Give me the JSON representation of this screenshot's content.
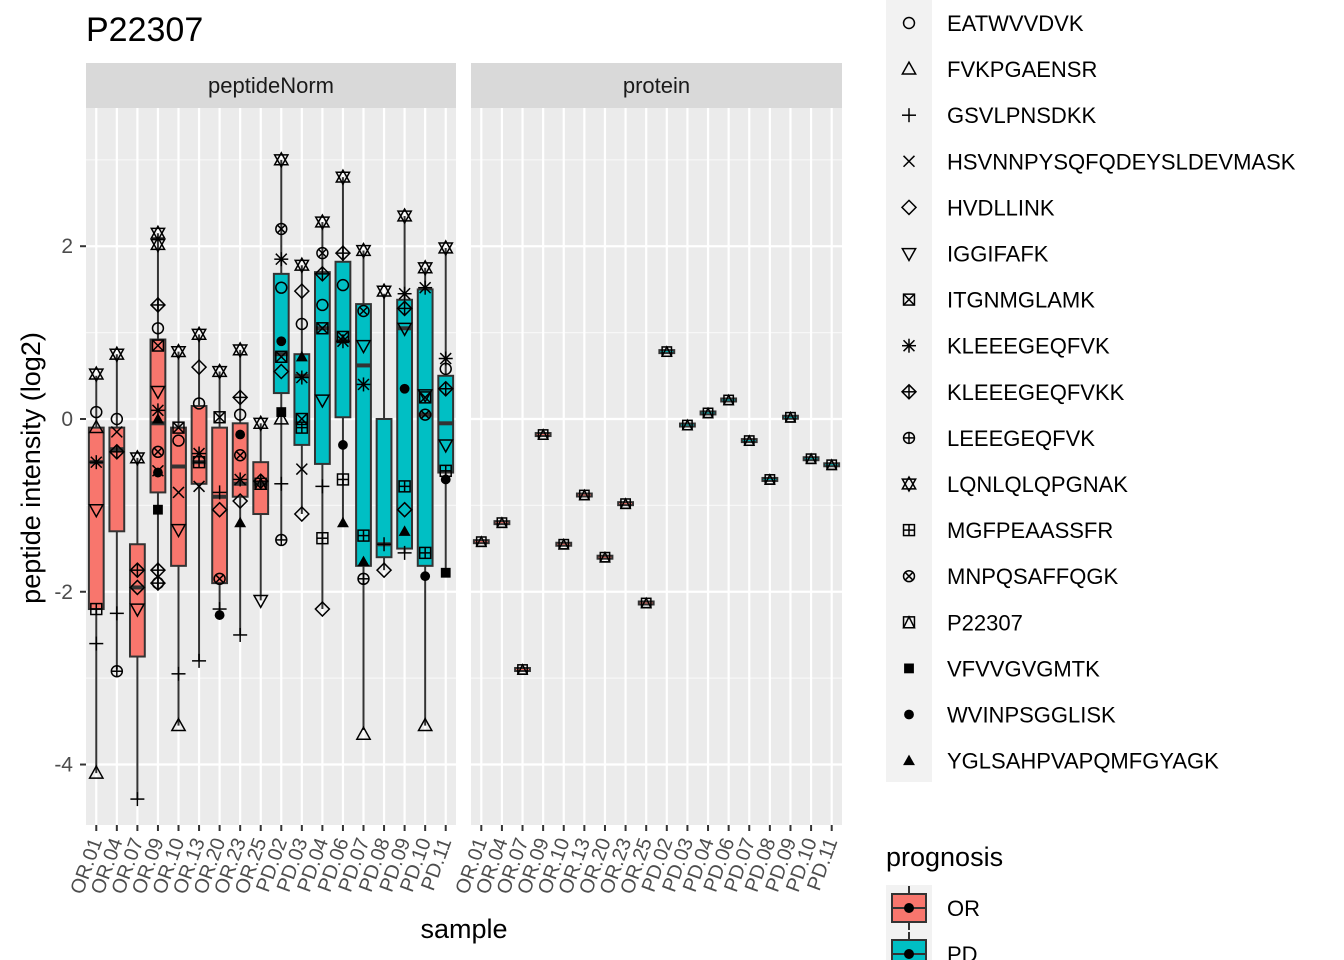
{
  "chart_data": {
    "type": "box",
    "title": "P22307",
    "xlabel": "sample",
    "ylabel": "peptide intensity (log2)",
    "ylim": [
      -4.7,
      3.6
    ],
    "y_ticks": [
      -4,
      -2,
      0,
      2
    ],
    "grid": true,
    "panels": [
      {
        "name": "peptideNorm",
        "samples": [
          "OR.01",
          "OR.04",
          "OR.07",
          "OR.09",
          "OR.10",
          "OR.13",
          "OR.20",
          "OR.23",
          "OR.25",
          "PD.02",
          "PD.03",
          "PD.04",
          "PD.06",
          "PD.07",
          "PD.08",
          "PD.09",
          "PD.10",
          "PD.11"
        ],
        "prognosis": [
          "OR",
          "OR",
          "OR",
          "OR",
          "OR",
          "OR",
          "OR",
          "OR",
          "OR",
          "PD",
          "PD",
          "PD",
          "PD",
          "PD",
          "PD",
          "PD",
          "PD",
          "PD"
        ],
        "boxes": [
          {
            "q1": -2.2,
            "median": -0.5,
            "q3": -0.1,
            "whisker_low": -4.1,
            "whisker_high": 0.5
          },
          {
            "q1": -1.3,
            "median": -0.35,
            "q3": -0.1,
            "whisker_low": -2.9,
            "whisker_high": 0.75
          },
          {
            "q1": -2.75,
            "median": -1.95,
            "q3": -1.45,
            "whisker_low": -4.4,
            "whisker_high": -0.45
          },
          {
            "q1": -0.85,
            "median": -0.05,
            "q3": 0.92,
            "whisker_low": -1.95,
            "whisker_high": 2.15
          },
          {
            "q1": -1.7,
            "median": -0.55,
            "q3": -0.1,
            "whisker_low": -3.55,
            "whisker_high": 0.78
          },
          {
            "q1": -0.75,
            "median": -0.5,
            "q3": 0.15,
            "whisker_low": -2.8,
            "whisker_high": 0.98
          },
          {
            "q1": -1.9,
            "median": -0.9,
            "q3": -0.1,
            "whisker_low": -2.25,
            "whisker_high": 0.55
          },
          {
            "q1": -0.9,
            "median": -0.75,
            "q3": -0.05,
            "whisker_low": -2.5,
            "whisker_high": 0.8
          },
          {
            "q1": -1.1,
            "median": -0.75,
            "q3": -0.5,
            "whisker_low": -2.1,
            "whisker_high": -0.05
          },
          {
            "q1": 0.3,
            "median": 0.75,
            "q3": 1.68,
            "whisker_low": -1.4,
            "whisker_high": 3.0
          },
          {
            "q1": -0.3,
            "median": 0.5,
            "q3": 0.75,
            "whisker_low": -1.1,
            "whisker_high": 1.78
          },
          {
            "q1": -0.52,
            "median": 1.05,
            "q3": 1.7,
            "whisker_low": -2.2,
            "whisker_high": 2.28
          },
          {
            "q1": 0.02,
            "median": 0.9,
            "q3": 1.82,
            "whisker_low": -1.2,
            "whisker_high": 2.8
          },
          {
            "q1": -1.7,
            "median": 0.62,
            "q3": 1.33,
            "whisker_low": -3.6,
            "whisker_high": 1.95
          },
          {
            "q1": -1.6,
            "median": -1.45,
            "q3": 0.0,
            "whisker_low": -1.75,
            "whisker_high": 1.45
          },
          {
            "q1": -1.5,
            "median": 1.05,
            "q3": 1.38,
            "whisker_low": -1.55,
            "whisker_high": 2.35
          },
          {
            "q1": -1.7,
            "median": 0.05,
            "q3": 1.5,
            "whisker_low": -3.55,
            "whisker_high": 1.75
          },
          {
            "q1": -0.62,
            "median": -0.05,
            "q3": 0.5,
            "whisker_low": -1.75,
            "whisker_high": 1.98
          }
        ],
        "points": [
          [
            {
              "peptide": "EATWVVDVK",
              "y": 0.08
            },
            {
              "peptide": "FVKPGAENSR",
              "y": -0.1
            },
            {
              "peptide": "KLEEEGEQFVK",
              "y": -0.5
            },
            {
              "peptide": "IGGIFAFK",
              "y": -1.05
            },
            {
              "peptide": "MGFPEAASSFR",
              "y": -2.2
            },
            {
              "peptide": "GSVLPNSDKK",
              "y": -2.6
            },
            {
              "peptide": "FVKPGAENSR",
              "y": -4.1
            },
            {
              "peptide": "LQNLQLQPGNAK",
              "y": 0.52
            }
          ],
          [
            {
              "peptide": "LQNLQLQPGNAK",
              "y": 0.75
            },
            {
              "peptide": "EATWVVDVK",
              "y": 0.0
            },
            {
              "peptide": "HSVNNPYSQFQDEYSLDEVMASK",
              "y": -0.15
            },
            {
              "peptide": "KLEEEGEQFVKK",
              "y": -0.38
            },
            {
              "peptide": "GSVLPNSDKK",
              "y": -2.25
            },
            {
              "peptide": "LEEEGEQFVK",
              "y": -2.92
            }
          ],
          [
            {
              "peptide": "LQNLQLQPGNAK",
              "y": -0.45
            },
            {
              "peptide": "KLEEEGEQFVKK",
              "y": -1.75
            },
            {
              "peptide": "HVDLLINK",
              "y": -1.95
            },
            {
              "peptide": "IGGIFAFK",
              "y": -2.2
            },
            {
              "peptide": "GSVLPNSDKK",
              "y": -4.4
            }
          ],
          [
            {
              "peptide": "LQNLQLQPGNAK",
              "y": 2.15
            },
            {
              "peptide": "LQNLQLQPGNAK",
              "y": 2.02
            },
            {
              "peptide": "KLEEEGEQFVKK",
              "y": 1.32
            },
            {
              "peptide": "EATWVVDVK",
              "y": 1.05
            },
            {
              "peptide": "ITGNMGLAMK",
              "y": 0.85
            },
            {
              "peptide": "IGGIFAFK",
              "y": 0.32
            },
            {
              "peptide": "KLEEEGEQFVK",
              "y": 0.1
            },
            {
              "peptide": "YGLSAHPVAPQMFGYAGK",
              "y": 0.0
            },
            {
              "peptide": "MNPQSAFFQGK",
              "y": -0.38
            },
            {
              "peptide": "HSVNNPYSQFQDEYSLDEVMASK",
              "y": -0.6
            },
            {
              "peptide": "WVINPSGGLISK",
              "y": -0.62
            },
            {
              "peptide": "VFVVGVGMTK",
              "y": -1.05
            },
            {
              "peptide": "KLEEEGEQFVKK",
              "y": -1.75
            },
            {
              "peptide": "HVDLLINK",
              "y": -1.9
            },
            {
              "peptide": "LEEEGEQFVK",
              "y": -1.9
            }
          ],
          [
            {
              "peptide": "LQNLQLQPGNAK",
              "y": 0.78
            },
            {
              "peptide": "EATWVVDVK",
              "y": -0.25
            },
            {
              "peptide": "ITGNMGLAMK",
              "y": -0.1
            },
            {
              "peptide": "HSVNNPYSQFQDEYSLDEVMASK",
              "y": -0.85
            },
            {
              "peptide": "IGGIFAFK",
              "y": -1.28
            },
            {
              "peptide": "GSVLPNSDKK",
              "y": -2.95
            },
            {
              "peptide": "FVKPGAENSR",
              "y": -3.55
            }
          ],
          [
            {
              "peptide": "LQNLQLQPGNAK",
              "y": 0.98
            },
            {
              "peptide": "HVDLLINK",
              "y": 0.6
            },
            {
              "peptide": "EATWVVDVK",
              "y": 0.18
            },
            {
              "peptide": "KLEEEGEQFVK",
              "y": -0.4
            },
            {
              "peptide": "MGFPEAASSFR",
              "y": -0.5
            },
            {
              "peptide": "HSVNNPYSQFQDEYSLDEVMASK",
              "y": -0.78
            },
            {
              "peptide": "GSVLPNSDKK",
              "y": -2.8
            }
          ],
          [
            {
              "peptide": "LQNLQLQPGNAK",
              "y": 0.55
            },
            {
              "peptide": "ITGNMGLAMK",
              "y": 0.02
            },
            {
              "peptide": "GSVLPNSDKK",
              "y": -0.85
            },
            {
              "peptide": "HVDLLINK",
              "y": -1.05
            },
            {
              "peptide": "MNPQSAFFQGK",
              "y": -1.85
            },
            {
              "peptide": "GSVLPNSDKK",
              "y": -2.2
            },
            {
              "peptide": "WVINPSGGLISK",
              "y": -2.27
            }
          ],
          [
            {
              "peptide": "LQNLQLQPGNAK",
              "y": 0.8
            },
            {
              "peptide": "KLEEEGEQFVKK",
              "y": 0.25
            },
            {
              "peptide": "EATWVVDVK",
              "y": 0.05
            },
            {
              "peptide": "WVINPSGGLISK",
              "y": -0.18
            },
            {
              "peptide": "MNPQSAFFQGK",
              "y": -0.42
            },
            {
              "peptide": "KLEEEGEQFVK",
              "y": -0.7
            },
            {
              "peptide": "HVDLLINK",
              "y": -0.95
            },
            {
              "peptide": "YGLSAHPVAPQMFGYAGK",
              "y": -1.2
            },
            {
              "peptide": "GSVLPNSDKK",
              "y": -2.5
            }
          ],
          [
            {
              "peptide": "LQNLQLQPGNAK",
              "y": -0.05
            },
            {
              "peptide": "KLEEEGEQFVKK",
              "y": -0.72
            },
            {
              "peptide": "P22307",
              "y": -0.75
            },
            {
              "peptide": "IGGIFAFK",
              "y": -2.1
            }
          ],
          [
            {
              "peptide": "LQNLQLQPGNAK",
              "y": 3.0
            },
            {
              "peptide": "MNPQSAFFQGK",
              "y": 2.2
            },
            {
              "peptide": "KLEEEGEQFVK",
              "y": 1.85
            },
            {
              "peptide": "EATWVVDVK",
              "y": 1.52
            },
            {
              "peptide": "WVINPSGGLISK",
              "y": 0.9
            },
            {
              "peptide": "ITGNMGLAMK",
              "y": 0.72
            },
            {
              "peptide": "HVDLLINK",
              "y": 0.55
            },
            {
              "peptide": "VFVVGVGMTK",
              "y": 0.08
            },
            {
              "peptide": "FVKPGAENSR",
              "y": 0.0
            },
            {
              "peptide": "GSVLPNSDKK",
              "y": -0.75
            },
            {
              "peptide": "LEEEGEQFVK",
              "y": -1.4
            }
          ],
          [
            {
              "peptide": "LQNLQLQPGNAK",
              "y": 1.78
            },
            {
              "peptide": "HVDLLINK",
              "y": 1.48
            },
            {
              "peptide": "EATWVVDVK",
              "y": 1.1
            },
            {
              "peptide": "YGLSAHPVAPQMFGYAGK",
              "y": 0.72
            },
            {
              "peptide": "KLEEEGEQFVK",
              "y": 0.48
            },
            {
              "peptide": "ITGNMGLAMK",
              "y": 0.0
            },
            {
              "peptide": "MGFPEAASSFR",
              "y": -0.1
            },
            {
              "peptide": "HSVNNPYSQFQDEYSLDEVMASK",
              "y": -0.58
            },
            {
              "peptide": "HVDLLINK",
              "y": -1.1
            }
          ],
          [
            {
              "peptide": "LQNLQLQPGNAK",
              "y": 2.28
            },
            {
              "peptide": "MNPQSAFFQGK",
              "y": 1.92
            },
            {
              "peptide": "KLEEEGEQFVKK",
              "y": 1.68
            },
            {
              "peptide": "EATWVVDVK",
              "y": 1.32
            },
            {
              "peptide": "ITGNMGLAMK",
              "y": 1.05
            },
            {
              "peptide": "IGGIFAFK",
              "y": 0.22
            },
            {
              "peptide": "GSVLPNSDKK",
              "y": -0.78
            },
            {
              "peptide": "MGFPEAASSFR",
              "y": -1.38
            },
            {
              "peptide": "HVDLLINK",
              "y": -2.2
            }
          ],
          [
            {
              "peptide": "LQNLQLQPGNAK",
              "y": 2.8
            },
            {
              "peptide": "KLEEEGEQFVKK",
              "y": 1.92
            },
            {
              "peptide": "EATWVVDVK",
              "y": 1.55
            },
            {
              "peptide": "ITGNMGLAMK",
              "y": 0.95
            },
            {
              "peptide": "KLEEEGEQFVK",
              "y": 0.9
            },
            {
              "peptide": "WVINPSGGLISK",
              "y": -0.3
            },
            {
              "peptide": "MGFPEAASSFR",
              "y": -0.7
            },
            {
              "peptide": "YGLSAHPVAPQMFGYAGK",
              "y": -1.2
            }
          ],
          [
            {
              "peptide": "LQNLQLQPGNAK",
              "y": 1.95
            },
            {
              "peptide": "MNPQSAFFQGK",
              "y": 1.25
            },
            {
              "peptide": "IGGIFAFK",
              "y": 0.85
            },
            {
              "peptide": "KLEEEGEQFVK",
              "y": 0.4
            },
            {
              "peptide": "MGFPEAASSFR",
              "y": -1.35
            },
            {
              "peptide": "YGLSAHPVAPQMFGYAGK",
              "y": -1.65
            },
            {
              "peptide": "LEEEGEQFVK",
              "y": -1.85
            },
            {
              "peptide": "FVKPGAENSR",
              "y": -3.65
            }
          ],
          [
            {
              "peptide": "LQNLQLQPGNAK",
              "y": 1.48
            },
            {
              "peptide": "GSVLPNSDKK",
              "y": -1.45
            },
            {
              "peptide": "HVDLLINK",
              "y": -1.75
            }
          ],
          [
            {
              "peptide": "LQNLQLQPGNAK",
              "y": 2.35
            },
            {
              "peptide": "KLEEEGEQFVK",
              "y": 1.45
            },
            {
              "peptide": "KLEEEGEQFVKK",
              "y": 1.28
            },
            {
              "peptide": "IGGIFAFK",
              "y": 1.05
            },
            {
              "peptide": "WVINPSGGLISK",
              "y": 0.35
            },
            {
              "peptide": "MGFPEAASSFR",
              "y": -0.78
            },
            {
              "peptide": "HVDLLINK",
              "y": -1.05
            },
            {
              "peptide": "YGLSAHPVAPQMFGYAGK",
              "y": -1.3
            },
            {
              "peptide": "GSVLPNSDKK",
              "y": -1.55
            }
          ],
          [
            {
              "peptide": "LQNLQLQPGNAK",
              "y": 1.75
            },
            {
              "peptide": "KLEEEGEQFVK",
              "y": 1.52
            },
            {
              "peptide": "ITGNMGLAMK",
              "y": 0.25
            },
            {
              "peptide": "MNPQSAFFQGK",
              "y": 0.05
            },
            {
              "peptide": "IGGIFAFK",
              "y": 0.28
            },
            {
              "peptide": "MGFPEAASSFR",
              "y": -1.55
            },
            {
              "peptide": "WVINPSGGLISK",
              "y": -1.82
            },
            {
              "peptide": "FVKPGAENSR",
              "y": -3.55
            }
          ],
          [
            {
              "peptide": "LQNLQLQPGNAK",
              "y": 1.98
            },
            {
              "peptide": "KLEEEGEQFVK",
              "y": 0.7
            },
            {
              "peptide": "EATWVVDVK",
              "y": 0.58
            },
            {
              "peptide": "KLEEEGEQFVKK",
              "y": 0.35
            },
            {
              "peptide": "IGGIFAFK",
              "y": -0.3
            },
            {
              "peptide": "MGFPEAASSFR",
              "y": -0.6
            },
            {
              "peptide": "WVINPSGGLISK",
              "y": -0.7
            },
            {
              "peptide": "VFVVGVGMTK",
              "y": -1.78
            }
          ]
        ]
      },
      {
        "name": "protein",
        "samples": [
          "OR.01",
          "OR.04",
          "OR.07",
          "OR.09",
          "OR.10",
          "OR.13",
          "OR.20",
          "OR.23",
          "OR.25",
          "PD.02",
          "PD.03",
          "PD.04",
          "PD.06",
          "PD.07",
          "PD.08",
          "PD.09",
          "PD.10",
          "PD.11"
        ],
        "peptide": "P22307",
        "values": [
          -1.42,
          -1.2,
          -2.9,
          -0.18,
          -1.45,
          -0.88,
          -1.6,
          -0.98,
          -2.13,
          0.78,
          -0.07,
          0.07,
          0.22,
          -0.25,
          -0.7,
          0.02,
          -0.46,
          -0.53
        ]
      }
    ],
    "legend_shape": {
      "placement": "right",
      "entries": [
        "EATWVVDVK",
        "FVKPGAENSR",
        "GSVLPNSDKK",
        "HSVNNPYSQFQDEYSLDEVMASK",
        "HVDLLINK",
        "IGGIFAFK",
        "ITGNMGLAMK",
        "KLEEEGEQFVK",
        "KLEEEGEQFVKK",
        "LEEEGEQFVK",
        "LQNLQLQPGNAK",
        "MGFPEAASSFR",
        "MNPQSAFFQGK",
        "P22307",
        "VFVVGVGMTK",
        "WVINPSGGLISK",
        "YGLSAHPVAPQMFGYAGK"
      ]
    },
    "legend_fill": {
      "title": "prognosis",
      "placement": "right",
      "entries": [
        {
          "label": "OR",
          "color": "#F8766D"
        },
        {
          "label": "PD",
          "color": "#00BFC4"
        }
      ]
    },
    "colors": {
      "panel_bg": "#EBEBEB",
      "grid": "#FFFFFF",
      "strip_bg": "#D9D9D9",
      "box_line": "#333333"
    }
  }
}
